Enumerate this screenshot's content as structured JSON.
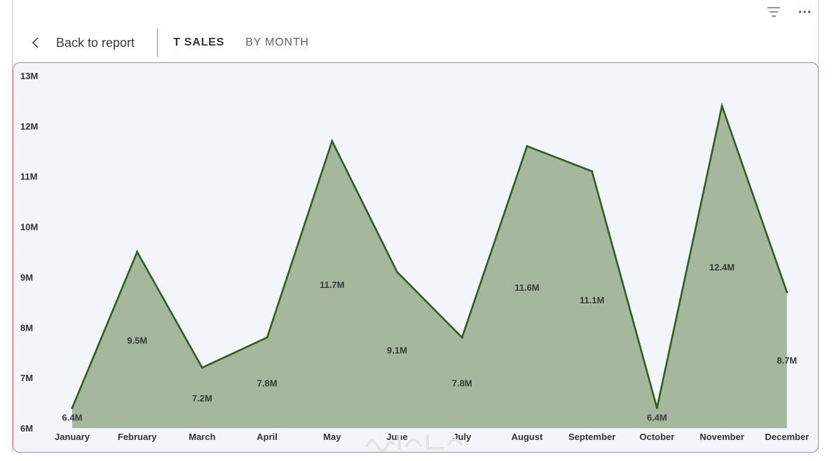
{
  "header": {
    "back_label": "Back to report",
    "title": "T SALES",
    "subtitle": "BY MONTH"
  },
  "toolbar": {
    "icons": [
      "filter-icon",
      "more-options-icon"
    ]
  },
  "colors": {
    "line": "#2e5e1e",
    "area": "#a5b89d",
    "plot_background": "#f2f5fa",
    "border": "#e57373",
    "tick_text": "#333333"
  },
  "chart_data": {
    "type": "area",
    "categories": [
      "January",
      "February",
      "March",
      "April",
      "May",
      "June",
      "July",
      "August",
      "September",
      "October",
      "November",
      "December"
    ],
    "values": [
      6.4,
      9.5,
      7.2,
      7.8,
      11.7,
      9.1,
      7.8,
      11.6,
      11.1,
      6.4,
      12.4,
      8.7
    ],
    "data_labels": [
      "6.4M",
      "9.5M",
      "7.2M",
      "7.8M",
      "11.7M",
      "9.1M",
      "7.8M",
      "11.6M",
      "11.1M",
      "6.4M",
      "12.4M",
      "8.7M"
    ],
    "y_ticks": [
      6,
      7,
      8,
      9,
      10,
      11,
      12,
      13
    ],
    "y_tick_labels": [
      "6M",
      "7M",
      "8M",
      "9M",
      "10M",
      "11M",
      "12M",
      "13M"
    ],
    "ylim": [
      6,
      13
    ],
    "title": "",
    "xlabel": "",
    "ylabel": "",
    "grid": false,
    "legend": "none"
  }
}
